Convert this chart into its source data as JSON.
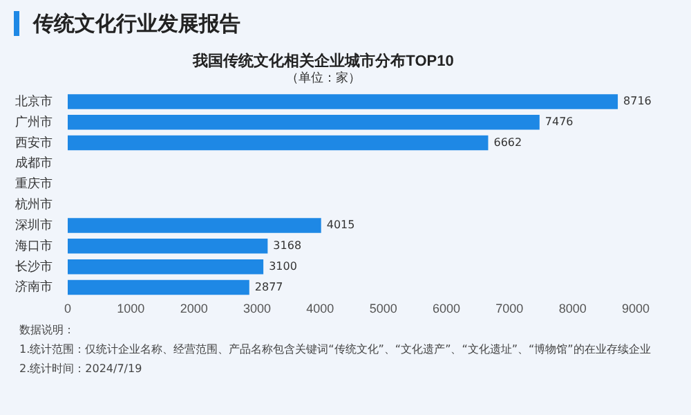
{
  "chart_data": {
    "type": "bar",
    "orientation": "horizontal",
    "title": "我国传统文化相关企业城市分布TOP10",
    "subtitle": "（单位：家）",
    "categories": [
      "北京市",
      "广州市",
      "西安市",
      "成都市",
      "重庆市",
      "杭州市",
      "深圳市",
      "海口市",
      "长沙市",
      "济南市"
    ],
    "values": [
      8716,
      7476,
      6662,
      null,
      null,
      null,
      4015,
      3168,
      3100,
      2877
    ],
    "color": "#1e88e5",
    "xlim": [
      0,
      9000
    ],
    "xticks": [
      0,
      1000,
      2000,
      3000,
      4000,
      5000,
      6000,
      7000,
      8000,
      9000
    ],
    "grid": false,
    "legend": false,
    "data_labels": true,
    "annotations": [
      "传统文化行业发展报告",
      "数据说明：",
      "1.统计范围：仅统计企业名称、经营范围、产品名称包含关键词“传统文化”、“文化遗产”、“文化遗址”、“博物馆”的在业存续企业",
      "2.统计时间：2024/7/19"
    ]
  }
}
